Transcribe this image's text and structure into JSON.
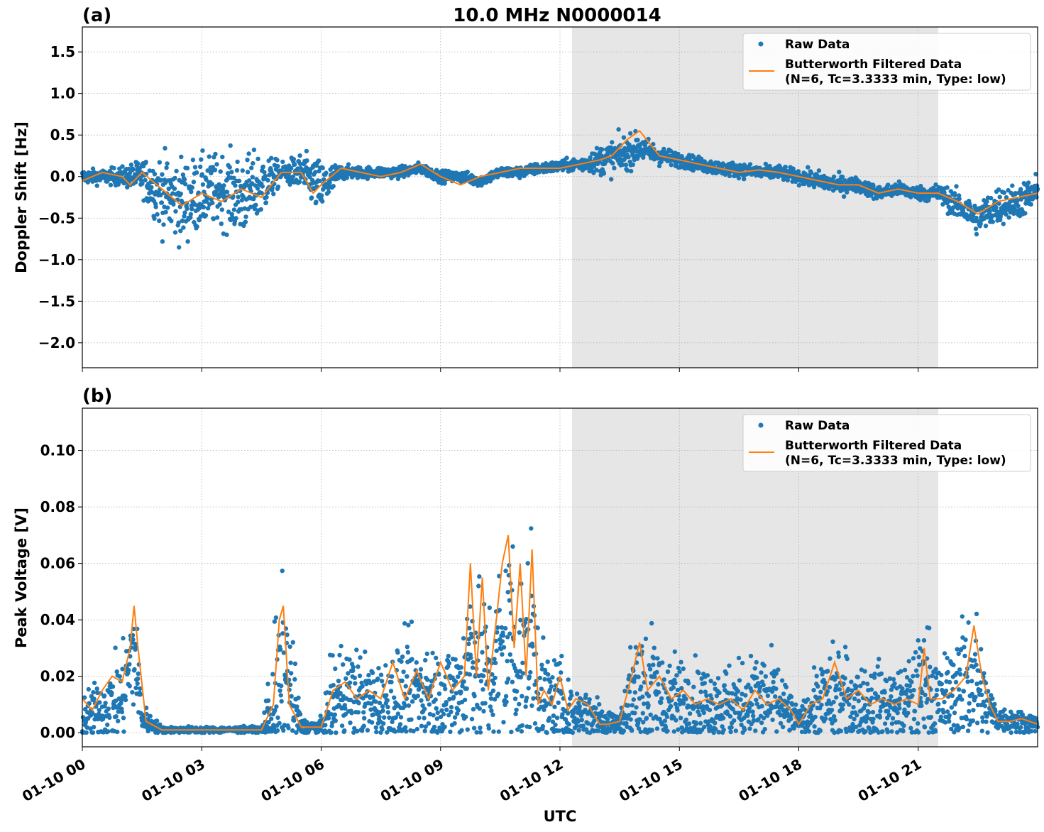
{
  "figure": {
    "title": "10.0 MHz N0000014",
    "xlabel": "UTC"
  },
  "legend": {
    "raw_label": "Raw Data",
    "filtered_label_line1": "Butterworth Filtered Data",
    "filtered_label_line2": "(N=6, Tc=3.3333 min, Type: low)"
  },
  "colors": {
    "raw": "#1f77b4",
    "filtered": "#ff7f0e",
    "shade": "#e6e6e6",
    "grid": "#b0b0b0"
  },
  "chart_data": [
    {
      "type": "scatter",
      "panel_label": "(a)",
      "title": "10.0 MHz N0000014",
      "xlabel": "",
      "ylabel": "Doppler Shift [Hz]",
      "xlim": [
        "01-10 00:00",
        "01-11 00:00"
      ],
      "ylim": [
        -2.3,
        1.8
      ],
      "yticks": [
        -2.0,
        -1.5,
        -1.0,
        -0.5,
        0.0,
        0.5,
        1.0,
        1.5
      ],
      "ytick_labels": [
        "−2.0",
        "−1.5",
        "−1.0",
        "−0.5",
        "0.0",
        "0.5",
        "1.0",
        "1.5"
      ],
      "grid": true,
      "legend_position": "top-right",
      "shaded_interval": [
        "01-10 12:20",
        "01-10 21:30"
      ],
      "series": [
        {
          "name": "Raw Data",
          "style": "points",
          "x_hours": [
            0,
            0.5,
            1,
            1.5,
            2,
            2.5,
            3,
            3.5,
            4,
            4.5,
            5,
            5.5,
            6,
            6.5,
            7,
            7.5,
            8,
            8.5,
            9,
            9.5,
            10,
            10.5,
            11,
            11.5,
            12,
            12.5,
            13,
            13.5,
            14,
            14.5,
            15,
            15.5,
            16,
            16.5,
            17,
            17.5,
            18,
            18.5,
            19,
            19.5,
            20,
            20.5,
            21,
            21.5,
            22,
            22.5,
            23,
            23.5,
            24
          ],
          "center": [
            0.0,
            0.0,
            0.0,
            0.0,
            -0.2,
            -0.3,
            -0.2,
            -0.15,
            -0.25,
            -0.1,
            0.05,
            0.05,
            -0.15,
            0.05,
            0.05,
            0.05,
            0.05,
            0.1,
            0.0,
            0.0,
            -0.05,
            0.05,
            0.05,
            0.1,
            0.12,
            0.15,
            0.2,
            0.25,
            0.35,
            0.25,
            0.2,
            0.15,
            0.1,
            0.08,
            0.05,
            0.05,
            0.0,
            -0.05,
            -0.1,
            -0.1,
            -0.2,
            -0.15,
            -0.2,
            -0.2,
            -0.35,
            -0.5,
            -0.35,
            -0.3,
            -0.2
          ],
          "spread": [
            0.15,
            0.15,
            0.2,
            0.35,
            0.8,
            0.9,
            0.75,
            0.75,
            0.85,
            0.7,
            0.2,
            0.4,
            0.6,
            0.15,
            0.12,
            0.12,
            0.12,
            0.12,
            0.12,
            0.12,
            0.12,
            0.12,
            0.12,
            0.12,
            0.12,
            0.15,
            0.3,
            0.4,
            0.3,
            0.2,
            0.15,
            0.15,
            0.15,
            0.15,
            0.15,
            0.15,
            0.15,
            0.2,
            0.2,
            0.15,
            0.15,
            0.15,
            0.15,
            0.2,
            0.3,
            0.35,
            0.4,
            0.35,
            0.4
          ]
        },
        {
          "name": "Butterworth Filtered Data (N=6, Tc=3.3333 min, Type: low)",
          "style": "line",
          "x_hours": [
            0,
            0.5,
            1,
            1.2,
            1.5,
            2,
            2.5,
            3,
            3.5,
            4,
            4.5,
            5,
            5.5,
            5.8,
            6,
            6.5,
            7,
            7.5,
            8,
            8.5,
            9,
            9.5,
            10,
            10.5,
            11,
            11.5,
            12,
            12.5,
            13,
            13.3,
            13.7,
            14,
            14.5,
            15,
            15.5,
            16,
            16.5,
            17,
            17.5,
            18,
            18.5,
            19,
            19.5,
            20,
            20.5,
            21,
            21.5,
            22,
            22.5,
            23,
            23.5,
            24
          ],
          "values": [
            -0.05,
            0.05,
            0.0,
            -0.1,
            0.05,
            -0.15,
            -0.35,
            -0.2,
            -0.3,
            -0.15,
            -0.25,
            0.05,
            0.05,
            -0.2,
            -0.1,
            0.1,
            0.05,
            0.0,
            0.05,
            0.15,
            0.0,
            -0.1,
            0.0,
            0.05,
            0.1,
            0.1,
            0.1,
            0.15,
            0.2,
            0.25,
            0.45,
            0.55,
            0.25,
            0.2,
            0.15,
            0.1,
            0.05,
            0.08,
            0.05,
            0.0,
            -0.05,
            -0.1,
            -0.1,
            -0.2,
            -0.15,
            -0.2,
            -0.2,
            -0.3,
            -0.45,
            -0.3,
            -0.25,
            -0.2
          ]
        }
      ]
    },
    {
      "type": "scatter",
      "panel_label": "(b)",
      "title": "",
      "xlabel": "UTC",
      "ylabel": "Peak Voltage [V]",
      "xlim": [
        "01-10 00:00",
        "01-11 00:00"
      ],
      "ylim": [
        -0.005,
        0.115
      ],
      "yticks": [
        0.0,
        0.02,
        0.04,
        0.06,
        0.08,
        0.1
      ],
      "ytick_labels": [
        "0.00",
        "0.02",
        "0.04",
        "0.06",
        "0.08",
        "0.10"
      ],
      "xtick_labels": [
        "01-10 00",
        "01-10 03",
        "01-10 06",
        "01-10 09",
        "01-10 12",
        "01-10 15",
        "01-10 18",
        "01-10 21"
      ],
      "grid": true,
      "legend_position": "top-right",
      "shaded_interval": [
        "01-10 12:20",
        "01-10 21:30"
      ],
      "series": [
        {
          "name": "Raw Data",
          "style": "points",
          "x_hours": [
            0,
            0.5,
            1,
            1.3,
            1.5,
            2,
            2.5,
            3,
            3.5,
            4,
            4.5,
            4.9,
            5.1,
            5.5,
            6,
            6.3,
            6.5,
            7,
            7.5,
            8,
            8.5,
            9,
            9.5,
            9.8,
            10,
            10.3,
            10.6,
            10.8,
            11,
            11.3,
            11.6,
            12,
            12.3,
            12.5,
            13,
            13.5,
            13.8,
            14,
            14.5,
            15,
            15.5,
            16,
            16.5,
            17,
            17.5,
            18,
            18.5,
            19,
            19.5,
            20,
            20.5,
            21,
            21.2,
            21.5,
            22,
            22.4,
            22.7,
            23,
            23.5,
            24
          ],
          "center": [
            0.005,
            0.008,
            0.012,
            0.03,
            0.005,
            0.001,
            0.001,
            0.001,
            0.001,
            0.001,
            0.001,
            0.01,
            0.02,
            0.002,
            0.002,
            0.01,
            0.015,
            0.012,
            0.01,
            0.012,
            0.015,
            0.012,
            0.015,
            0.03,
            0.02,
            0.02,
            0.03,
            0.035,
            0.02,
            0.03,
            0.01,
            0.01,
            0.005,
            0.008,
            0.005,
            0.003,
            0.012,
            0.015,
            0.012,
            0.01,
            0.01,
            0.01,
            0.01,
            0.012,
            0.01,
            0.004,
            0.01,
            0.012,
            0.01,
            0.01,
            0.01,
            0.012,
            0.02,
            0.01,
            0.015,
            0.02,
            0.01,
            0.005,
            0.004,
            0.003
          ],
          "spread": [
            0.015,
            0.02,
            0.03,
            0.04,
            0.01,
            0.002,
            0.002,
            0.002,
            0.002,
            0.002,
            0.002,
            0.06,
            0.06,
            0.005,
            0.005,
            0.03,
            0.03,
            0.03,
            0.025,
            0.035,
            0.035,
            0.03,
            0.035,
            0.07,
            0.05,
            0.05,
            0.07,
            0.075,
            0.06,
            0.07,
            0.03,
            0.03,
            0.015,
            0.015,
            0.015,
            0.005,
            0.04,
            0.05,
            0.035,
            0.03,
            0.025,
            0.025,
            0.025,
            0.03,
            0.025,
            0.006,
            0.025,
            0.035,
            0.025,
            0.025,
            0.02,
            0.035,
            0.04,
            0.025,
            0.035,
            0.05,
            0.02,
            0.008,
            0.008,
            0.006
          ]
        },
        {
          "name": "Butterworth Filtered Data (N=6, Tc=3.3333 min, Type: low)",
          "style": "line",
          "x_hours": [
            0,
            0.25,
            0.5,
            0.75,
            1,
            1.2,
            1.3,
            1.4,
            1.6,
            2,
            2.5,
            3,
            3.5,
            4,
            4.5,
            4.8,
            4.95,
            5.05,
            5.2,
            5.5,
            6,
            6.3,
            6.6,
            6.9,
            7.2,
            7.5,
            7.8,
            8.1,
            8.4,
            8.7,
            9,
            9.3,
            9.6,
            9.75,
            9.9,
            10.05,
            10.2,
            10.4,
            10.55,
            10.7,
            10.85,
            11,
            11.15,
            11.3,
            11.45,
            11.6,
            11.8,
            12,
            12.2,
            12.4,
            12.7,
            13,
            13.2,
            13.5,
            13.8,
            14,
            14.2,
            14.5,
            14.8,
            15.1,
            15.4,
            15.7,
            16,
            16.3,
            16.6,
            16.9,
            17.2,
            17.5,
            17.8,
            18,
            18.3,
            18.6,
            18.9,
            19.2,
            19.5,
            19.8,
            20.1,
            20.4,
            20.7,
            21,
            21.15,
            21.3,
            21.6,
            21.9,
            22.2,
            22.4,
            22.6,
            22.8,
            23,
            23.3,
            23.6,
            24
          ],
          "values": [
            0.012,
            0.008,
            0.015,
            0.02,
            0.018,
            0.03,
            0.045,
            0.03,
            0.004,
            0.001,
            0.001,
            0.001,
            0.001,
            0.001,
            0.001,
            0.01,
            0.04,
            0.045,
            0.01,
            0.002,
            0.002,
            0.015,
            0.018,
            0.012,
            0.015,
            0.012,
            0.025,
            0.012,
            0.022,
            0.012,
            0.025,
            0.015,
            0.02,
            0.06,
            0.02,
            0.055,
            0.015,
            0.04,
            0.06,
            0.07,
            0.03,
            0.06,
            0.02,
            0.065,
            0.01,
            0.015,
            0.01,
            0.02,
            0.008,
            0.012,
            0.01,
            0.003,
            0.003,
            0.004,
            0.02,
            0.032,
            0.015,
            0.02,
            0.012,
            0.015,
            0.01,
            0.012,
            0.01,
            0.012,
            0.008,
            0.015,
            0.01,
            0.012,
            0.008,
            0.003,
            0.01,
            0.012,
            0.025,
            0.012,
            0.015,
            0.01,
            0.012,
            0.01,
            0.012,
            0.01,
            0.03,
            0.012,
            0.012,
            0.015,
            0.02,
            0.038,
            0.02,
            0.01,
            0.004,
            0.004,
            0.005,
            0.003
          ]
        }
      ]
    }
  ]
}
